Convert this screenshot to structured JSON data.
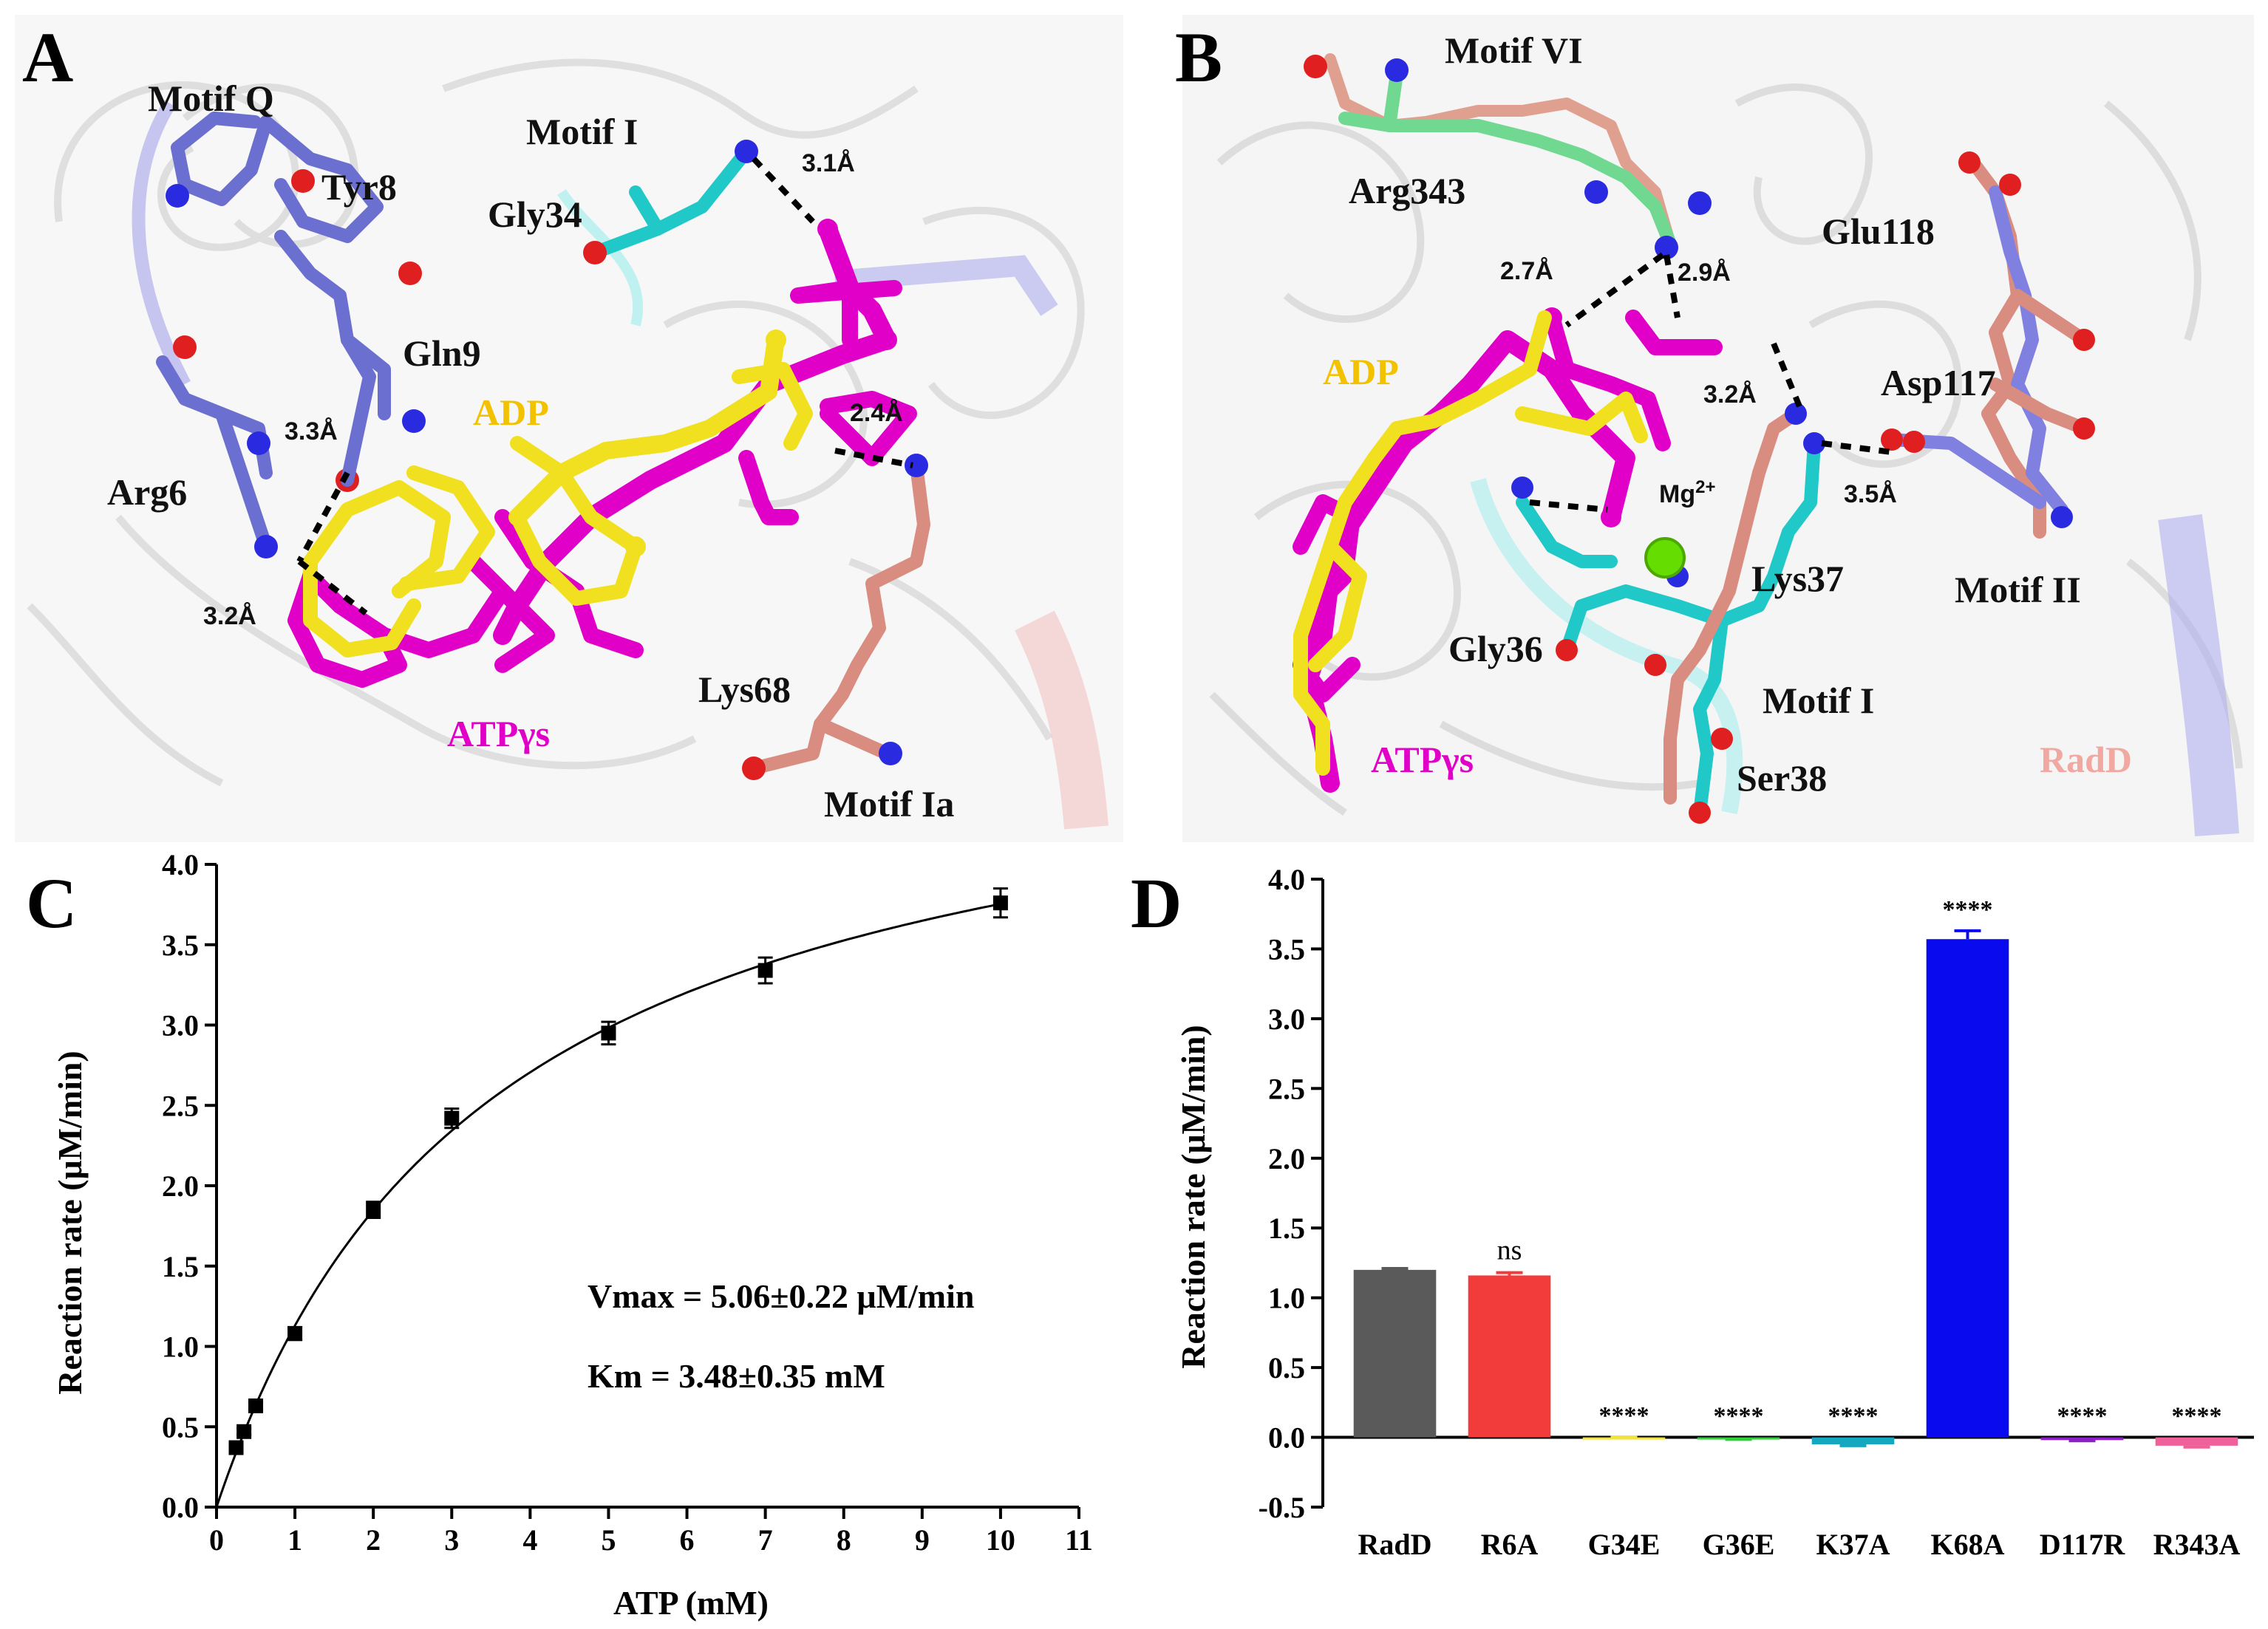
{
  "panel_letters": {
    "A": "A",
    "B": "B",
    "C": "C",
    "D": "D"
  },
  "panel_a": {
    "labels": {
      "motif_q": "Motif Q",
      "tyr8": "Tyr8",
      "motif_i": "Motif I",
      "gly34": "Gly34",
      "gln9": "Gln9",
      "arg6": "Arg6",
      "adp": "ADP",
      "atp": "ATPγs",
      "lys68": "Lys68",
      "motif_ia": "Motif Ia",
      "d31": "3.1Å",
      "d33": "3.3Å",
      "d24": "2.4Å",
      "d32": "3.2Å"
    },
    "colors": {
      "adp": "#f0c000",
      "atp": "#e000c8",
      "motif_q": "#6a6fd0",
      "motif_i": "#20c8c8",
      "motif_ia": "#d98c80"
    }
  },
  "panel_b": {
    "labels": {
      "motif_vi": "Motif VI",
      "arg343": "Arg343",
      "glu118": "Glu118",
      "d27": "2.7Å",
      "d29": "2.9Å",
      "adp": "ADP",
      "d32": "3.2Å",
      "asp117": "Asp117",
      "mg_base": "Mg",
      "mg_sup": "2+",
      "d35": "3.5Å",
      "lys37": "Lys37",
      "motif_ii": "Motif II",
      "gly36": "Gly36",
      "motif_i": "Motif I",
      "atp": "ATPγs",
      "radd": "RadD",
      "ser38": "Ser38"
    },
    "colors": {
      "adp": "#f0c000",
      "atp": "#e000c8",
      "radd": "#f0a8a0",
      "mg": "#66dd00"
    }
  },
  "chart_data": [
    {
      "panel": "C",
      "type": "scatter",
      "xlabel": "ATP (mM)",
      "ylabel": "Reaction rate (μM/min)",
      "xlim": [
        0,
        11
      ],
      "ylim": [
        0,
        4.0
      ],
      "xticks": [
        "0",
        "1",
        "2",
        "3",
        "4",
        "5",
        "6",
        "7",
        "8",
        "9",
        "10",
        "11"
      ],
      "yticks": [
        "0.0",
        "0.5",
        "1.0",
        "1.5",
        "2.0",
        "2.5",
        "3.0",
        "3.5",
        "4.0"
      ],
      "points": [
        {
          "x": 0.25,
          "y": 0.37,
          "err": 0.02
        },
        {
          "x": 0.35,
          "y": 0.47,
          "err": 0.02
        },
        {
          "x": 0.5,
          "y": 0.63,
          "err": 0.02
        },
        {
          "x": 1,
          "y": 1.08,
          "err": 0.04
        },
        {
          "x": 2,
          "y": 1.85,
          "err": 0.05
        },
        {
          "x": 3,
          "y": 2.42,
          "err": 0.06
        },
        {
          "x": 5,
          "y": 2.95,
          "err": 0.07
        },
        {
          "x": 7,
          "y": 3.34,
          "err": 0.08
        },
        {
          "x": 10,
          "y": 3.76,
          "err": 0.09
        }
      ],
      "fit": {
        "model": "Michaelis-Menten",
        "vmax": 5.06,
        "km": 3.48
      },
      "annotations": [
        "Vmax = 5.06±0.22 μM/min",
        "Km = 3.48±0.35 mM"
      ]
    },
    {
      "panel": "D",
      "type": "bar",
      "xlabel": "",
      "ylabel": "Reaction rate (μM/min)",
      "ylim": [
        -0.5,
        4.0
      ],
      "yticks": [
        "-0.5",
        "0.0",
        "0.5",
        "1.0",
        "1.5",
        "2.0",
        "2.5",
        "3.0",
        "3.5",
        "4.0"
      ],
      "categories": [
        "RadD",
        "R6A",
        "G34E",
        "G36E",
        "K37A",
        "K68A",
        "D117R",
        "R343A"
      ],
      "values": [
        1.2,
        1.16,
        0.0,
        -0.01,
        -0.05,
        3.57,
        -0.02,
        -0.06
      ],
      "errors": [
        0.01,
        0.02,
        0.003,
        0.005,
        0.01,
        0.06,
        0.005,
        0.01
      ],
      "colors": [
        "#5a5a5a",
        "#f23c3c",
        "#f2e23c",
        "#2fd03c",
        "#14a8c0",
        "#0a0aee",
        "#8c20c8",
        "#f0609a"
      ],
      "significance": [
        "",
        "ns",
        "****",
        "****",
        "****",
        "****",
        "****",
        "****"
      ]
    }
  ]
}
